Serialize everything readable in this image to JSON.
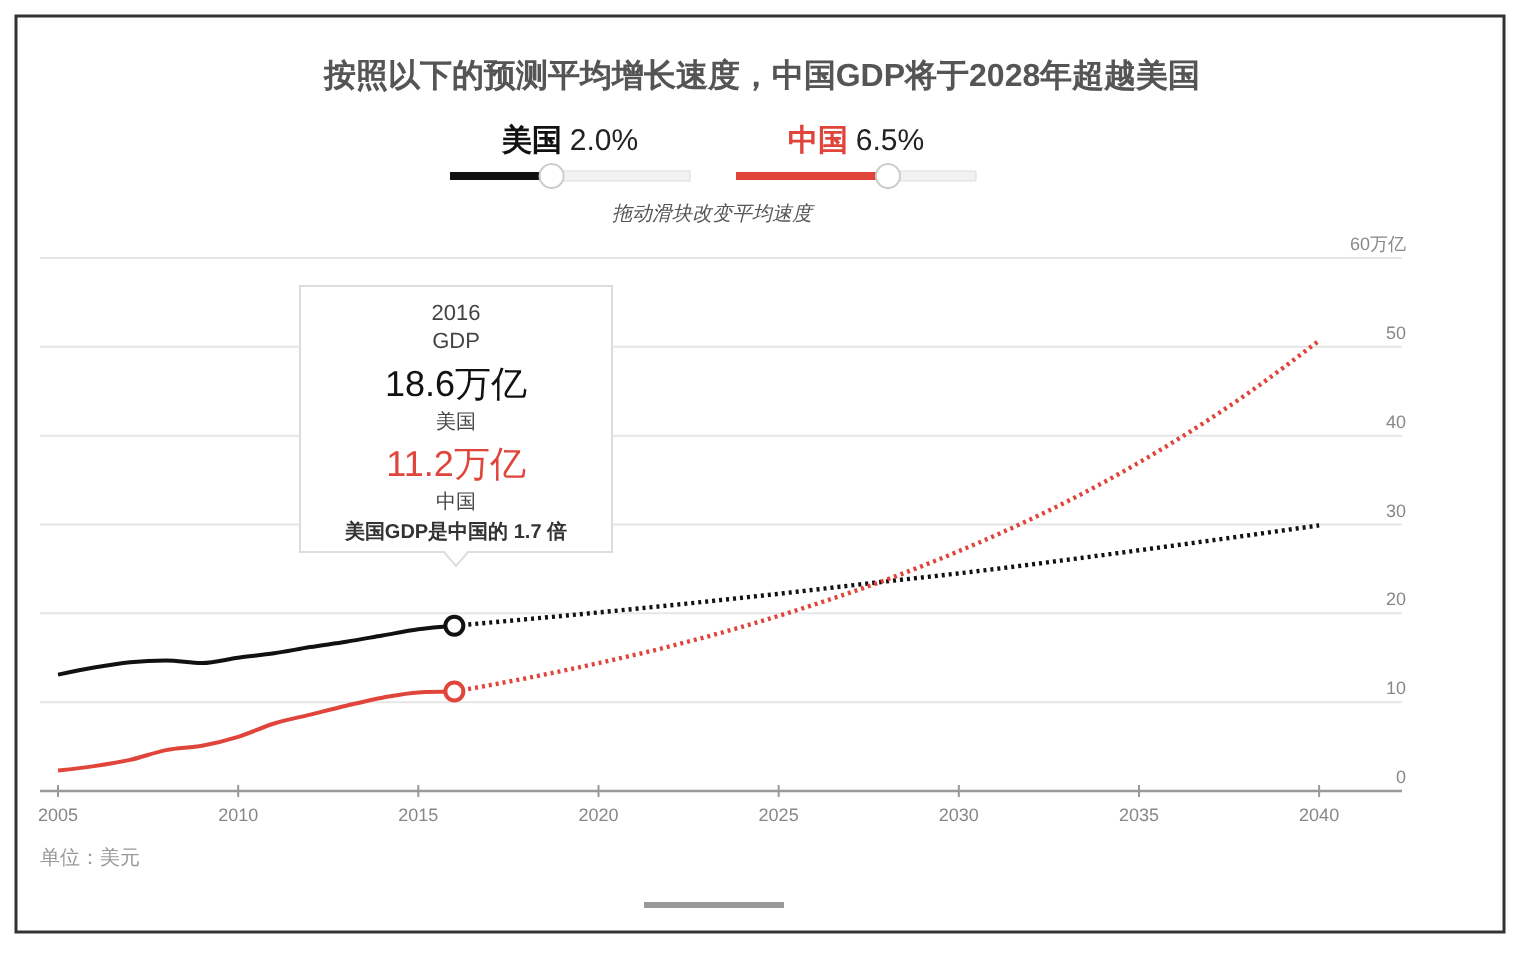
{
  "chart_data": {
    "type": "line",
    "title": "按照以下的预测平均增长速度，中国GDP将于2028年超越美国",
    "xlim": [
      2004.5,
      2042.3
    ],
    "xticks": [
      2005,
      2010,
      2015,
      2020,
      2025,
      2030,
      2035,
      2040
    ],
    "ylim": [
      0,
      60
    ],
    "yticks": [
      0,
      10,
      20,
      30,
      40,
      50,
      {
        "value": 60,
        "label": "60万亿"
      }
    ],
    "grid": "y",
    "legend": "top",
    "line_style": "solid",
    "series": [
      {
        "name": "美国",
        "color": "#111111",
        "x": [
          2005,
          2006,
          2007,
          2008,
          2009,
          2010,
          2011,
          2012,
          2013,
          2014,
          2015,
          2016
        ],
        "values": [
          13.1,
          13.9,
          14.5,
          14.7,
          14.4,
          15.0,
          15.5,
          16.2,
          16.8,
          17.5,
          18.2,
          18.6
        ]
      },
      {
        "name": "中国",
        "color": "#e0453c",
        "x": [
          2005,
          2006,
          2007,
          2008,
          2009,
          2010,
          2011,
          2012,
          2013,
          2014,
          2015,
          2016
        ],
        "values": [
          2.3,
          2.8,
          3.5,
          4.6,
          5.1,
          6.1,
          7.6,
          8.6,
          9.6,
          10.5,
          11.1,
          11.2
        ]
      },
      {
        "color": "#111111",
        "line_style": "dotted",
        "x": [
          2016,
          2020,
          2025,
          2028,
          2030,
          2035,
          2040
        ],
        "values": [
          18.6,
          20.1,
          22.2,
          23.6,
          24.5,
          27.1,
          29.9
        ]
      },
      {
        "color": "#e0453c",
        "line_style": "dotted",
        "x": [
          2016,
          2018,
          2020,
          2022,
          2024,
          2026,
          2028,
          2030,
          2032,
          2034,
          2036,
          2038,
          2040
        ],
        "values": [
          11.2,
          12.7,
          14.4,
          16.3,
          18.5,
          21.0,
          23.8,
          27.0,
          30.6,
          34.7,
          39.4,
          44.7,
          50.7
        ]
      },
      {
        "type": "scatter",
        "color": "#111111",
        "marker": "circle",
        "x": [
          2016
        ],
        "values": [
          18.6
        ]
      },
      {
        "type": "scatter",
        "color": "#e0453c",
        "marker": "circle",
        "x": [
          2016
        ],
        "values": [
          11.2
        ]
      }
    ],
    "annotations": [
      "2016",
      "GDP",
      "18.6万亿",
      "美国",
      "11.2万亿",
      "中国",
      "美国GDP是中国的 1.7 倍",
      "拖动滑块改变平均速度",
      "单位：美元",
      "2.0%",
      "6.5%"
    ]
  }
}
